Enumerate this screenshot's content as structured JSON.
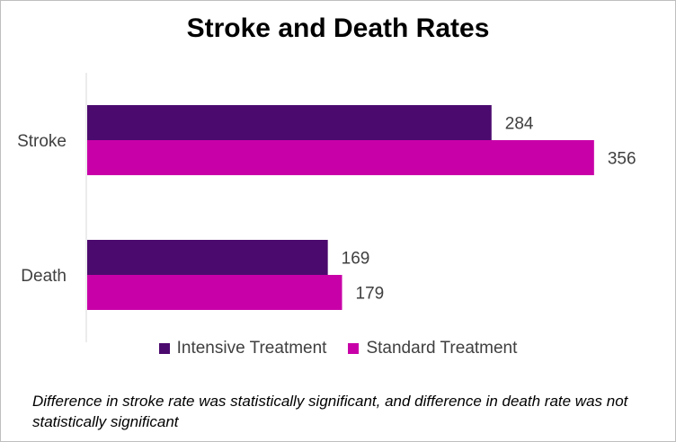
{
  "chart_data": {
    "type": "bar",
    "orientation": "horizontal",
    "title": "Stroke and Death Rates",
    "categories": [
      "Stroke",
      "Death"
    ],
    "series": [
      {
        "name": "Intensive Treatment",
        "values": [
          284,
          169
        ],
        "color": "#4b0a6e"
      },
      {
        "name": "Standard Treatment",
        "values": [
          356,
          179
        ],
        "color": "#c800a8"
      }
    ],
    "xlim": [
      0,
      400
    ],
    "grid": false,
    "legend_position": "bottom",
    "data_labels": true
  },
  "footnote": "Difference in stroke rate was statistically significant, and difference in death rate was not statistically significant"
}
